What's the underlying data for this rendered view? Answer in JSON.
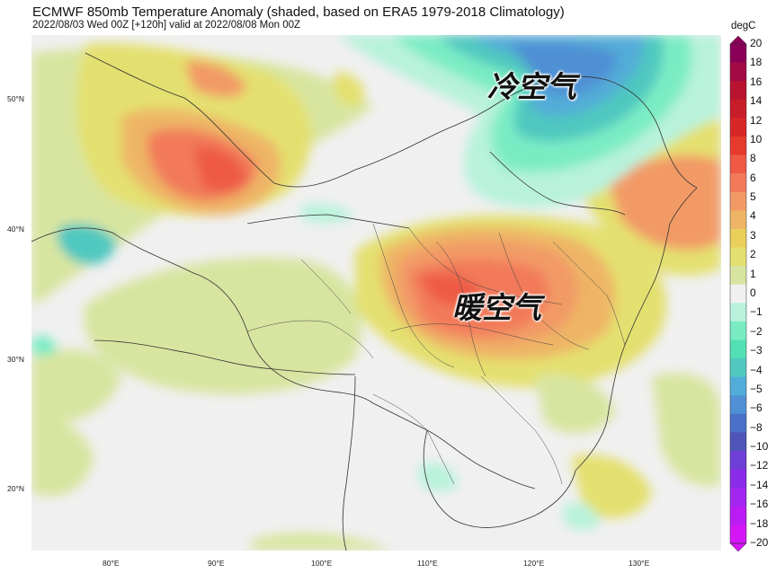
{
  "header": {
    "title": "ECMWF 850mb Temperature Anomaly (shaded, based on ERA5 1979-2018 Climatology)",
    "subtitle": "2022/08/03 Wed 00Z [+120h] valid at 2022/08/08 Mon 00Z"
  },
  "map": {
    "lat_labels": [
      "50°N",
      "40°N",
      "30°N",
      "20°N"
    ],
    "lon_labels": [
      "80°E",
      "90°E",
      "100°E",
      "110°E",
      "120°E",
      "130°E"
    ],
    "annotations": {
      "cold_air": "冷空气",
      "warm_air": "暖空气"
    }
  },
  "colorbar": {
    "unit": "degC",
    "levels": [
      "20",
      "18",
      "16",
      "14",
      "12",
      "10",
      "8",
      "6",
      "5",
      "4",
      "3",
      "2",
      "1",
      "0",
      "−1",
      "−2",
      "−3",
      "−4",
      "−5",
      "−6",
      "−8",
      "−10",
      "−12",
      "−14",
      "−16",
      "−18",
      "−20"
    ],
    "colors": [
      "#8a0057",
      "#a30a45",
      "#b81430",
      "#c81c2a",
      "#d92626",
      "#e63a2e",
      "#ee5a45",
      "#f27a5a",
      "#f29a66",
      "#eeb566",
      "#ead05a",
      "#e4e070",
      "#d8e5a0",
      "#f0f0f0",
      "#b8f2dc",
      "#7aecc4",
      "#52e0b4",
      "#50c8c0",
      "#52acd8",
      "#5090d4",
      "#4a70c8",
      "#4f55b8",
      "#6f3ed6",
      "#8a2be8",
      "#a226ef",
      "#bb1cf5",
      "#d416f7"
    ]
  }
}
